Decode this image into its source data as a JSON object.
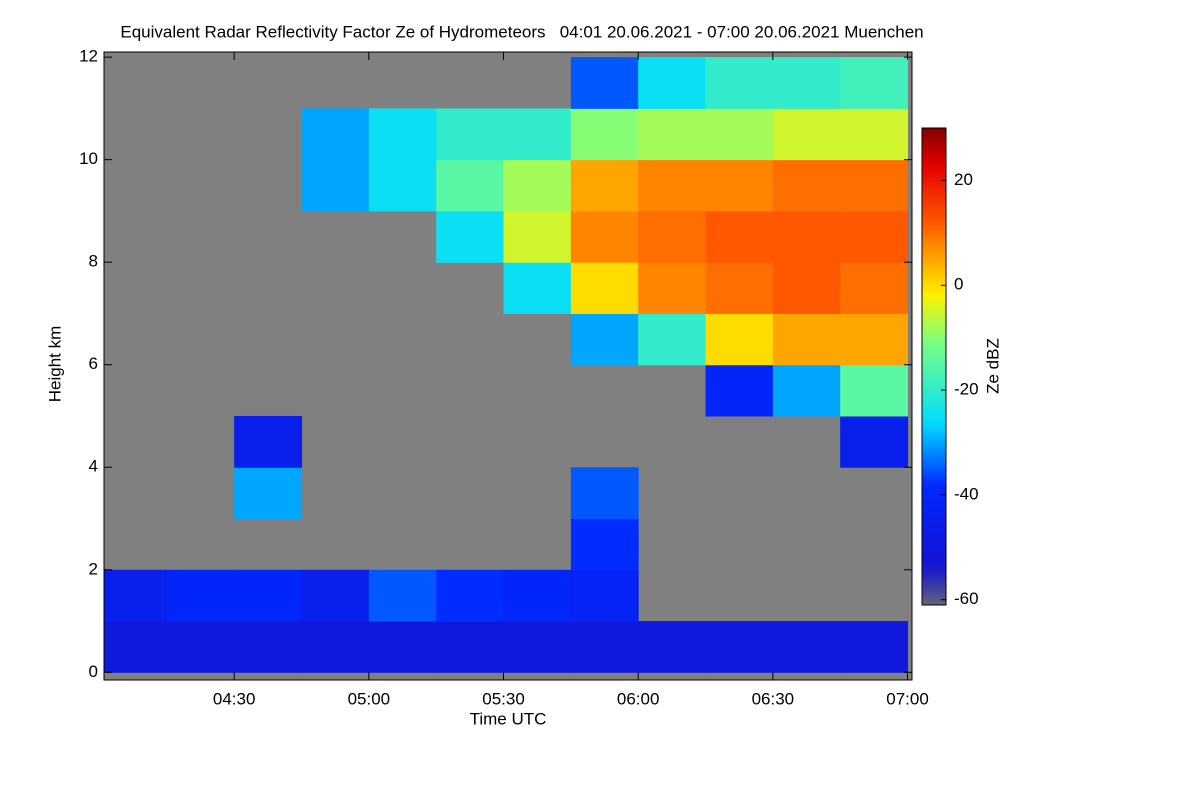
{
  "chart_data": {
    "type": "heatmap",
    "title": "Equivalent Radar Reflectivity Factor Ze of Hydrometeors   04:01 20.06.2021 - 07:00 20.06.2021 Muenchen",
    "xlabel": "Time UTC",
    "ylabel": "Height km",
    "colorbar_label": "Ze dBZ",
    "background": "#808080",
    "xlim": [
      "04:01",
      "07:01"
    ],
    "xticks": [
      "04:30",
      "05:00",
      "05:30",
      "06:00",
      "06:30",
      "07:00"
    ],
    "ylim": [
      -0.15,
      12.1
    ],
    "yticks": [
      0,
      2,
      4,
      6,
      8,
      10,
      12
    ],
    "clim": [
      -61,
      30
    ],
    "cticks": [
      -60,
      -40,
      -20,
      0,
      20
    ],
    "x": [
      "04:01",
      "04:15",
      "04:30",
      "04:45",
      "05:00",
      "05:15",
      "05:30",
      "05:45",
      "06:00",
      "06:15",
      "06:30",
      "06:45",
      "07:00"
    ],
    "y": [
      0,
      1,
      2,
      3,
      4,
      5,
      6,
      7,
      8,
      9,
      10,
      11,
      12
    ],
    "values": [
      [
        -50,
        -50,
        -50,
        -50,
        -50,
        -50,
        -50,
        -50,
        -50,
        -50,
        -50,
        -50
      ],
      [
        -45,
        -40,
        -40,
        -45,
        -35,
        -38,
        -40,
        -42,
        null,
        null,
        null,
        null
      ],
      [
        null,
        null,
        null,
        null,
        null,
        null,
        null,
        -38,
        null,
        null,
        null,
        null
      ],
      [
        null,
        null,
        -30,
        null,
        null,
        null,
        null,
        -35,
        null,
        null,
        null,
        null
      ],
      [
        null,
        null,
        -45,
        null,
        null,
        null,
        null,
        null,
        null,
        null,
        null,
        -45
      ],
      [
        null,
        null,
        null,
        null,
        null,
        null,
        null,
        null,
        null,
        -40,
        -30,
        -15
      ],
      [
        null,
        null,
        null,
        null,
        null,
        null,
        null,
        -30,
        -20,
        0,
        5,
        5
      ],
      [
        null,
        null,
        null,
        null,
        null,
        null,
        -25,
        0,
        8,
        10,
        12,
        10
      ],
      [
        null,
        null,
        null,
        null,
        null,
        -25,
        -5,
        8,
        10,
        12,
        12,
        12
      ],
      [
        null,
        null,
        null,
        -30,
        -25,
        -15,
        -8,
        5,
        8,
        8,
        10,
        10
      ],
      [
        null,
        null,
        null,
        -30,
        -25,
        -20,
        -20,
        -10,
        -8,
        -8,
        -5,
        -5
      ],
      [
        null,
        null,
        null,
        null,
        null,
        null,
        null,
        -35,
        -25,
        -20,
        -20,
        -18
      ]
    ]
  }
}
